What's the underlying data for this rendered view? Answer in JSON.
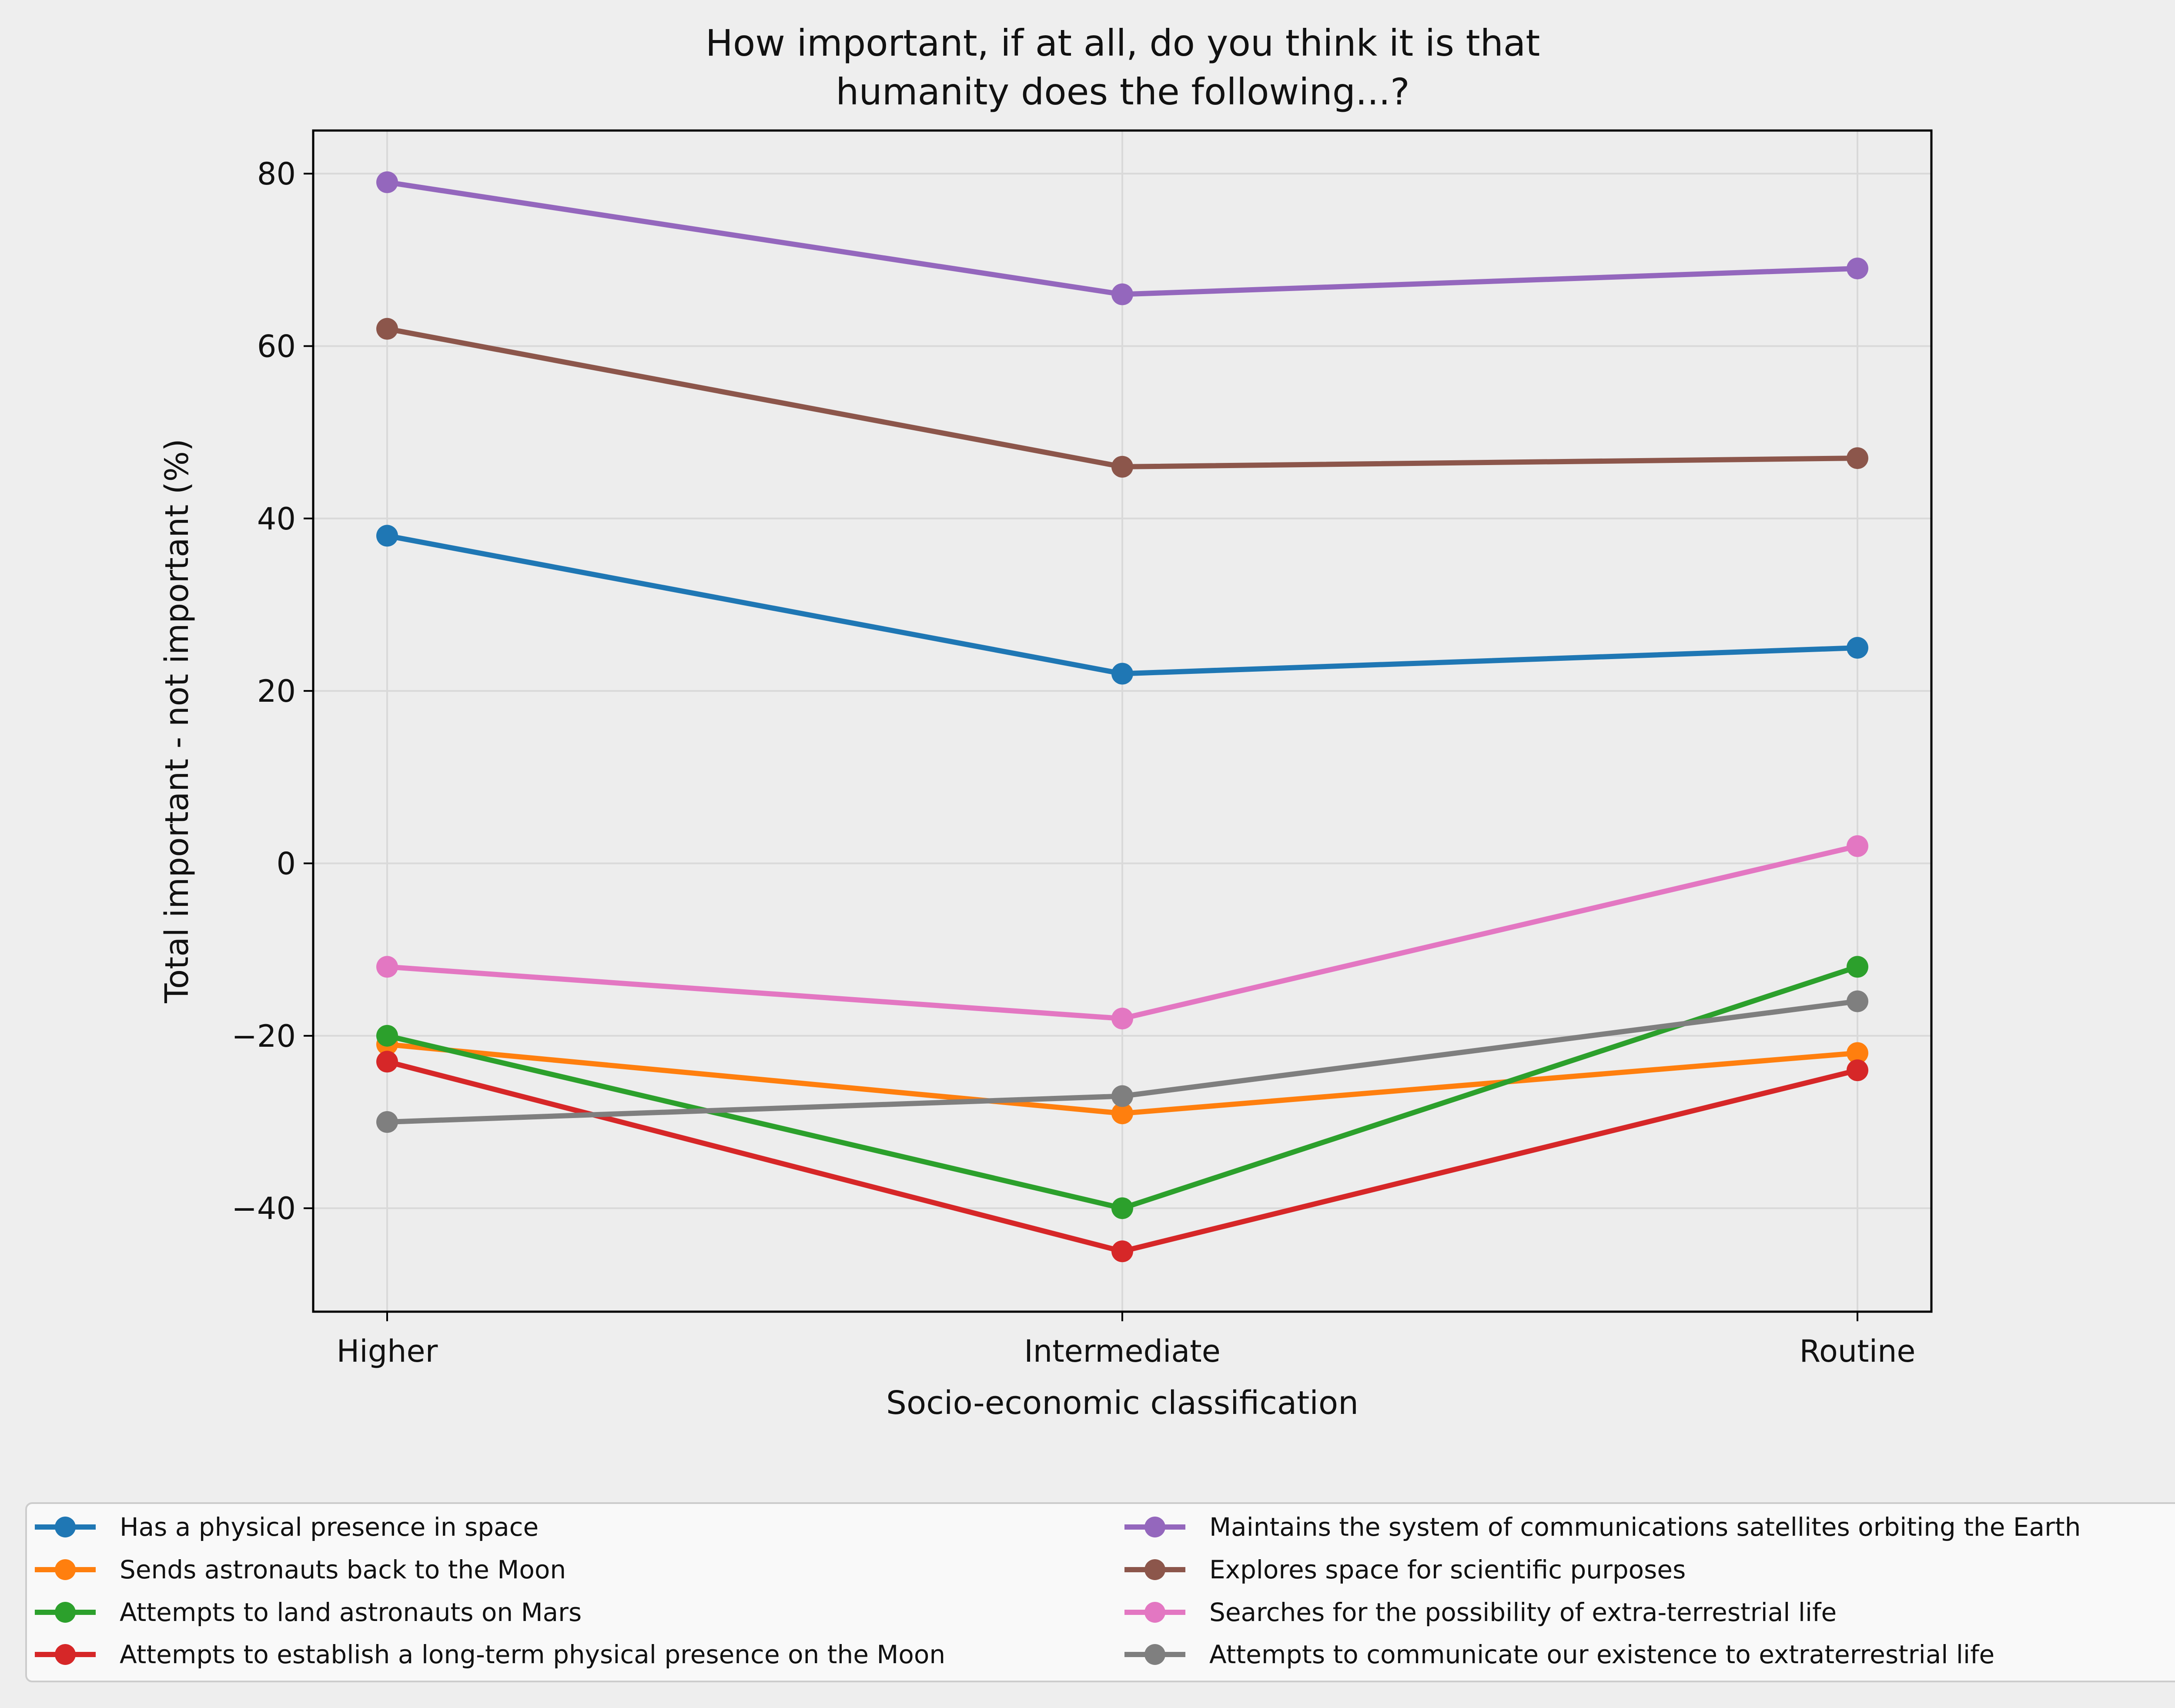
{
  "chart_data": {
    "type": "line",
    "title": [
      "How important, if at all, do you think it is that",
      "humanity does the following...?"
    ],
    "xlabel": "Socio-economic classification",
    "ylabel": "Total important - not important (%)",
    "categories": [
      "Higher",
      "Intermediate",
      "Routine"
    ],
    "ylim": [
      -52,
      85
    ],
    "yticks": [
      {
        "value": 80,
        "label": "80"
      },
      {
        "value": 60,
        "label": "60"
      },
      {
        "value": 40,
        "label": "40"
      },
      {
        "value": 20,
        "label": "20"
      },
      {
        "value": 0,
        "label": "0"
      },
      {
        "value": -20,
        "label": "−20"
      },
      {
        "value": -40,
        "label": "−40"
      }
    ],
    "grid": true,
    "legend_position": "below chart, two columns",
    "series": [
      {
        "name": "Has a physical presence in space",
        "color": "#1f77b4",
        "values": [
          38,
          22,
          25
        ]
      },
      {
        "name": "Sends astronauts back to the Moon",
        "color": "#ff7f0e",
        "values": [
          -21,
          -29,
          -22
        ]
      },
      {
        "name": "Attempts to land astronauts on Mars",
        "color": "#2ca02c",
        "values": [
          -20,
          -40,
          -12
        ]
      },
      {
        "name": "Attempts to establish a long-term physical presence on the Moon",
        "color": "#d62728",
        "values": [
          -23,
          -45,
          -24
        ]
      },
      {
        "name": "Maintains the system of communications satellites orbiting the Earth",
        "color": "#9467bd",
        "values": [
          79,
          66,
          69
        ]
      },
      {
        "name": "Explores space for scientific purposes",
        "color": "#8c564b",
        "values": [
          62,
          46,
          47
        ]
      },
      {
        "name": "Searches for the possibility of extra-terrestrial life",
        "color": "#e377c2",
        "values": [
          -12,
          -18,
          2
        ]
      },
      {
        "name": "Attempts to communicate our existence to extraterrestrial life",
        "color": "#7f7f7f",
        "values": [
          -30,
          -27,
          -16
        ]
      }
    ]
  }
}
